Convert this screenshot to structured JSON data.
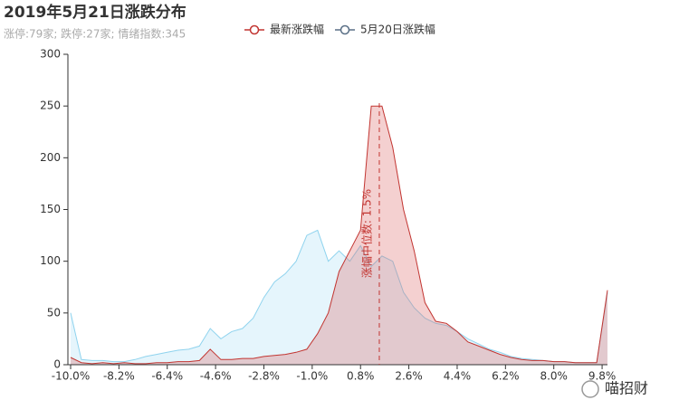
{
  "chart_data": {
    "type": "area",
    "title": "2019年5月21日涨跌分布",
    "subtitle": "涨停:79家; 跌停:27家; 情绪指数:345",
    "x": [
      -10,
      -9.6,
      -9.2,
      -8.8,
      -8.4,
      -8,
      -7.6,
      -7.2,
      -6.8,
      -6.4,
      -6,
      -5.6,
      -5.2,
      -4.8,
      -4.4,
      -4,
      -3.6,
      -3.2,
      -2.8,
      -2.4,
      -2,
      -1.6,
      -1.2,
      -0.8,
      -0.4,
      0,
      0.4,
      0.8,
      1.2,
      1.6,
      2,
      2.4,
      2.8,
      3.2,
      3.6,
      4,
      4.4,
      4.8,
      5.2,
      5.6,
      6,
      6.4,
      6.8,
      7.2,
      7.6,
      8,
      8.4,
      8.8,
      9.2,
      9.6,
      10
    ],
    "series": [
      {
        "name": "最新涨跌幅",
        "color": "#c23531",
        "values": [
          7,
          2,
          1,
          2,
          1,
          2,
          1,
          1,
          2,
          2,
          3,
          3,
          4,
          15,
          5,
          5,
          6,
          6,
          8,
          9,
          10,
          12,
          15,
          30,
          50,
          90,
          110,
          130,
          250,
          250,
          210,
          150,
          110,
          60,
          42,
          40,
          32,
          22,
          18,
          14,
          10,
          7,
          5,
          4,
          4,
          3,
          3,
          2,
          2,
          2,
          72
        ]
      },
      {
        "name": "5月20日涨跌幅",
        "color": "#8fd3ee",
        "values": [
          50,
          5,
          4,
          4,
          3,
          3,
          5,
          8,
          10,
          12,
          14,
          15,
          18,
          35,
          25,
          32,
          35,
          45,
          65,
          80,
          88,
          100,
          125,
          130,
          100,
          110,
          100,
          115,
          95,
          105,
          100,
          70,
          55,
          45,
          40,
          38,
          32,
          25,
          20,
          15,
          12,
          8,
          6,
          5,
          4,
          3,
          3,
          2,
          2,
          2,
          70
        ]
      }
    ],
    "median": {
      "value": 1.5,
      "label": "涨幅中位数: 1.5%"
    },
    "xlim": [
      -10,
      10
    ],
    "xticks": [
      {
        "value": -10,
        "label": "-10.0%"
      },
      {
        "value": -8.2,
        "label": "-8.2%"
      },
      {
        "value": -6.4,
        "label": "-6.4%"
      },
      {
        "value": -4.6,
        "label": "-4.6%"
      },
      {
        "value": -2.8,
        "label": "-2.8%"
      },
      {
        "value": -1,
        "label": "-1.0%"
      },
      {
        "value": 0.8,
        "label": "0.8%"
      },
      {
        "value": 2.6,
        "label": "2.6%"
      },
      {
        "value": 4.4,
        "label": "4.4%"
      },
      {
        "value": 6.2,
        "label": "6.2%"
      },
      {
        "value": 8,
        "label": "8.0%"
      },
      {
        "value": 9.8,
        "label": "9.8%"
      }
    ],
    "ylim": [
      0,
      300
    ],
    "yticks": [
      0,
      50,
      100,
      150,
      200,
      250,
      300
    ],
    "grid": false,
    "watermark": "喵招财"
  }
}
